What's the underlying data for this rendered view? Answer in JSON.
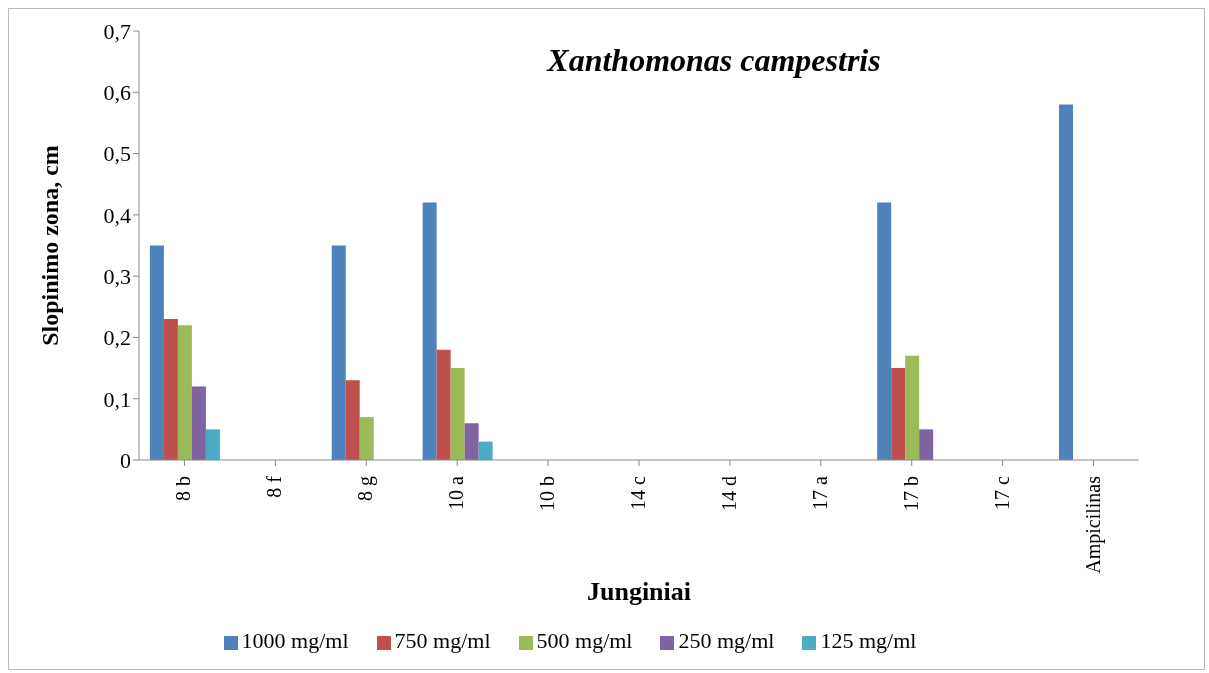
{
  "chart_data": {
    "type": "bar",
    "title": "Xanthomonas campestris",
    "xlabel": "Junginiai",
    "ylabel": "Slopinimo zona, cm",
    "categories": [
      "8 b",
      "8 f",
      "8 g",
      "10 a",
      "10 b",
      "14 c",
      "14 d",
      "17 a",
      "17 b",
      "17 c",
      "Ampicilinas"
    ],
    "series": [
      {
        "name": "1000 mg/ml",
        "color": "#4f81bd",
        "values": [
          0.35,
          0,
          0.35,
          0.42,
          0,
          0,
          0,
          0,
          0.42,
          0,
          0.58
        ]
      },
      {
        "name": "750 mg/ml",
        "color": "#c0504d",
        "values": [
          0.23,
          0,
          0.13,
          0.18,
          0,
          0,
          0,
          0,
          0.15,
          0,
          0
        ]
      },
      {
        "name": "500 mg/ml",
        "color": "#9bbb59",
        "values": [
          0.22,
          0,
          0.07,
          0.15,
          0,
          0,
          0,
          0,
          0.17,
          0,
          0
        ]
      },
      {
        "name": "250 mg/ml",
        "color": "#8064a2",
        "values": [
          0.12,
          0,
          0,
          0.06,
          0,
          0,
          0,
          0,
          0.05,
          0,
          0
        ]
      },
      {
        "name": "125 mg/ml",
        "color": "#4bacc6",
        "values": [
          0.05,
          0,
          0,
          0.03,
          0,
          0,
          0,
          0,
          0,
          0,
          0
        ]
      }
    ],
    "ylim": [
      0,
      0.7
    ],
    "yticks": [
      0,
      {
        "value": 0.1,
        "label": "0,1"
      },
      {
        "value": 0.2,
        "label": "0,2"
      },
      {
        "value": 0.3,
        "label": "0,3"
      },
      {
        "value": 0.4,
        "label": "0,4"
      },
      {
        "value": 0.5,
        "label": "0,5"
      },
      {
        "value": 0.6,
        "label": "0,6"
      },
      {
        "value": 0.7,
        "label": "0,7"
      }
    ],
    "grid": false,
    "legend": "bottom"
  }
}
